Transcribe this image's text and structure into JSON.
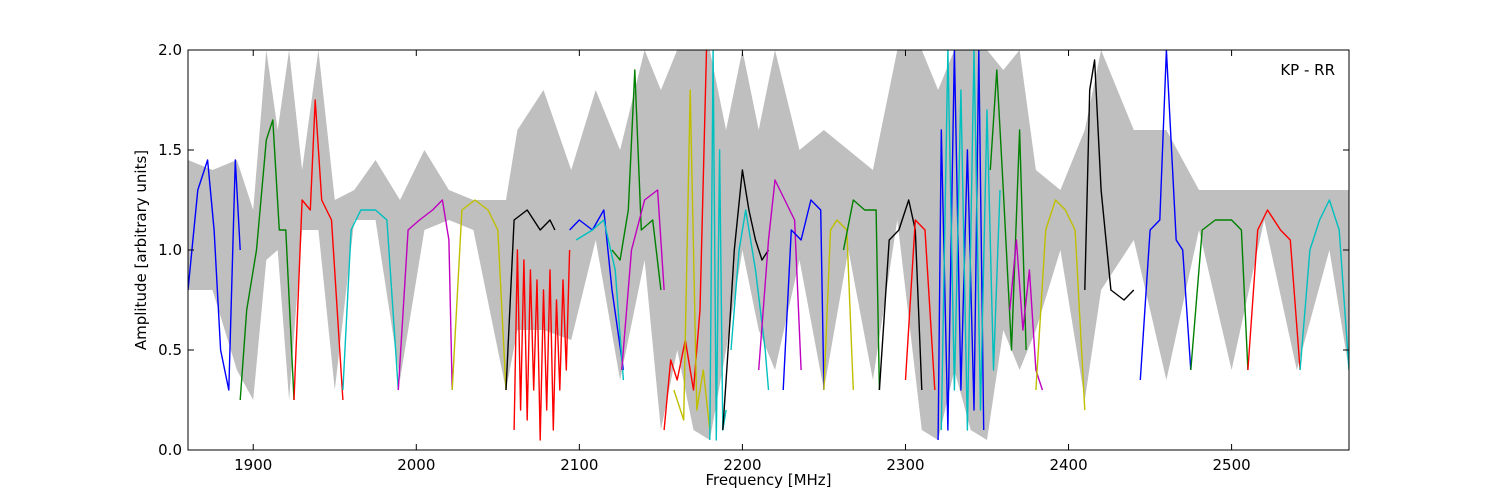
{
  "chart_data": {
    "type": "line",
    "xlabel": "Frequency [MHz]",
    "ylabel": "Amplitude [arbitrary units]",
    "annotation": "KP - RR",
    "xlim": [
      1860,
      2572
    ],
    "ylim": [
      0,
      2.0
    ],
    "xticks": [
      1900,
      2000,
      2100,
      2200,
      2300,
      2400,
      2500
    ],
    "yticks": [
      0.0,
      0.5,
      1.0,
      1.5,
      2.0
    ],
    "xtick_labels": [
      "1900",
      "2000",
      "2100",
      "2200",
      "2300",
      "2400",
      "2500"
    ],
    "ytick_labels": [
      "0.0",
      "0.5",
      "1.0",
      "1.5",
      "2.0"
    ],
    "grid": false,
    "background_envelope": {
      "color": "#bfbfbf",
      "x": [
        1860,
        1875,
        1890,
        1900,
        1908,
        1915,
        1922,
        1930,
        1940,
        1950,
        1962,
        1975,
        1990,
        2005,
        2020,
        2035,
        2055,
        2062,
        2078,
        2095,
        2110,
        2125,
        2140,
        2150,
        2160,
        2170,
        2180,
        2190,
        2200,
        2210,
        2220,
        2235,
        2250,
        2265,
        2280,
        2295,
        2310,
        2320,
        2330,
        2340,
        2350,
        2360,
        2370,
        2380,
        2395,
        2410,
        2420,
        2440,
        2460,
        2480,
        2500,
        2520,
        2540,
        2560,
        2572
      ],
      "top": [
        1.45,
        1.4,
        1.45,
        1.2,
        2.0,
        1.6,
        2.0,
        1.4,
        2.0,
        1.25,
        1.3,
        1.45,
        1.25,
        1.5,
        1.3,
        1.25,
        1.25,
        1.6,
        1.8,
        1.4,
        1.8,
        1.5,
        2.0,
        1.8,
        2.0,
        2.0,
        2.0,
        1.6,
        2.0,
        1.6,
        2.0,
        1.5,
        1.6,
        1.5,
        1.4,
        2.0,
        2.0,
        1.8,
        2.0,
        2.0,
        2.0,
        1.9,
        2.0,
        1.4,
        1.3,
        1.6,
        2.0,
        1.6,
        1.6,
        1.3,
        1.3,
        1.3,
        1.3,
        1.3,
        1.3
      ],
      "bottom": [
        0.8,
        0.8,
        0.4,
        0.25,
        0.95,
        1.0,
        0.25,
        1.1,
        1.1,
        0.3,
        1.15,
        1.15,
        0.35,
        1.1,
        1.15,
        1.1,
        0.3,
        0.6,
        0.6,
        0.55,
        1.05,
        0.35,
        0.95,
        0.1,
        0.5,
        0.1,
        0.05,
        0.5,
        1.0,
        0.6,
        0.4,
        0.95,
        0.3,
        1.0,
        0.35,
        1.15,
        0.1,
        0.05,
        0.4,
        0.1,
        0.05,
        0.6,
        0.4,
        0.6,
        1.0,
        0.25,
        0.8,
        1.05,
        0.35,
        1.1,
        0.4,
        1.15,
        0.4,
        1.0,
        0.4
      ]
    },
    "series": [
      {
        "color": "#0000ff",
        "x": [
          1860,
          1866,
          1872,
          1876,
          1880,
          1885,
          1889,
          1892
        ],
        "y": [
          0.8,
          1.3,
          1.45,
          1.1,
          0.5,
          0.3,
          1.45,
          1.0
        ]
      },
      {
        "color": "#008000",
        "x": [
          1892,
          1896,
          1902,
          1908,
          1912,
          1916,
          1920,
          1925
        ],
        "y": [
          0.25,
          0.7,
          1.0,
          1.55,
          1.65,
          1.1,
          1.1,
          0.25
        ]
      },
      {
        "color": "#ff0000",
        "x": [
          1925,
          1930,
          1935,
          1938,
          1942,
          1948,
          1955
        ],
        "y": [
          0.25,
          1.25,
          1.2,
          1.75,
          1.25,
          1.15,
          0.25
        ]
      },
      {
        "color": "#00bfbf",
        "x": [
          1955,
          1960,
          1966,
          1975,
          1982,
          1989
        ],
        "y": [
          0.3,
          1.1,
          1.2,
          1.2,
          1.15,
          0.3
        ]
      },
      {
        "color": "#bf00bf",
        "x": [
          1989,
          1995,
          2002,
          2010,
          2016,
          2020,
          2022
        ],
        "y": [
          0.3,
          1.1,
          1.15,
          1.2,
          1.25,
          1.05,
          0.3
        ]
      },
      {
        "color": "#bfbf00",
        "x": [
          2022,
          2028,
          2036,
          2044,
          2050,
          2055
        ],
        "y": [
          0.3,
          1.2,
          1.25,
          1.2,
          1.1,
          0.3
        ]
      },
      {
        "color": "#000000",
        "x": [
          2055,
          2060,
          2068,
          2076,
          2082,
          2085
        ],
        "y": [
          0.3,
          1.15,
          1.2,
          1.1,
          1.15,
          1.1
        ]
      },
      {
        "color": "#ff0000",
        "x": [
          2060,
          2062,
          2064,
          2066,
          2068,
          2070,
          2072,
          2074,
          2076,
          2078,
          2080,
          2082,
          2084,
          2086,
          2088,
          2090,
          2092,
          2094
        ],
        "y": [
          0.1,
          1.0,
          0.2,
          0.95,
          0.15,
          0.9,
          0.3,
          0.85,
          0.05,
          0.8,
          0.2,
          0.9,
          0.1,
          0.75,
          0.3,
          0.85,
          0.4,
          1.0
        ]
      },
      {
        "color": "#0000ff",
        "x": [
          2094,
          2100,
          2108,
          2115,
          2120,
          2127
        ],
        "y": [
          1.1,
          1.15,
          1.1,
          1.2,
          0.8,
          0.4
        ]
      },
      {
        "color": "#00bfbf",
        "x": [
          2098,
          2108,
          2115,
          2122,
          2127
        ],
        "y": [
          1.05,
          1.1,
          1.15,
          0.9,
          0.35
        ]
      },
      {
        "color": "#008000",
        "x": [
          2120,
          2125,
          2130,
          2134,
          2138,
          2145,
          2150
        ],
        "y": [
          1.0,
          0.95,
          1.2,
          1.9,
          1.1,
          1.15,
          0.8
        ]
      },
      {
        "color": "#bf00bf",
        "x": [
          2126,
          2132,
          2140,
          2148,
          2152
        ],
        "y": [
          0.4,
          1.0,
          1.25,
          1.3,
          0.8
        ]
      },
      {
        "color": "#ff0000",
        "x": [
          2152,
          2156,
          2160,
          2165,
          2170,
          2174,
          2178
        ],
        "y": [
          0.1,
          0.45,
          0.35,
          0.55,
          0.3,
          0.7,
          2.0
        ]
      },
      {
        "color": "#bfbf00",
        "x": [
          2158,
          2164,
          2168,
          2172,
          2176,
          2180
        ],
        "y": [
          0.3,
          0.15,
          1.8,
          0.2,
          0.4,
          0.1
        ]
      },
      {
        "color": "#00bfbf",
        "x": [
          2180,
          2182,
          2184,
          2186,
          2188,
          2190
        ],
        "y": [
          0.05,
          2.0,
          0.05,
          1.5,
          0.1,
          0.2
        ]
      },
      {
        "color": "#000000",
        "x": [
          2188,
          2192,
          2195,
          2200,
          2204,
          2208,
          2212,
          2216
        ],
        "y": [
          0.1,
          0.6,
          1.0,
          1.4,
          1.2,
          1.05,
          0.95,
          1.0
        ]
      },
      {
        "color": "#00bfbf",
        "x": [
          2193,
          2198,
          2202,
          2208,
          2214,
          2216
        ],
        "y": [
          0.5,
          1.0,
          1.2,
          0.9,
          0.5,
          0.3
        ]
      },
      {
        "color": "#bf00bf",
        "x": [
          2210,
          2216,
          2220,
          2226,
          2232,
          2236
        ],
        "y": [
          0.4,
          1.05,
          1.35,
          1.25,
          1.15,
          0.4
        ]
      },
      {
        "color": "#0000ff",
        "x": [
          2225,
          2230,
          2236,
          2242,
          2248,
          2250
        ],
        "y": [
          0.3,
          1.1,
          1.05,
          1.25,
          1.2,
          0.3
        ]
      },
      {
        "color": "#bfbf00",
        "x": [
          2250,
          2254,
          2258,
          2264,
          2268
        ],
        "y": [
          0.3,
          1.1,
          1.15,
          1.1,
          0.3
        ]
      },
      {
        "color": "#008000",
        "x": [
          2262,
          2268,
          2275,
          2282,
          2284
        ],
        "y": [
          1.0,
          1.25,
          1.2,
          1.2,
          0.3
        ]
      },
      {
        "color": "#000000",
        "x": [
          2284,
          2290,
          2296,
          2302,
          2306,
          2310
        ],
        "y": [
          0.3,
          1.05,
          1.1,
          1.25,
          1.1,
          0.3
        ]
      },
      {
        "color": "#ff0000",
        "x": [
          2300,
          2306,
          2312,
          2318
        ],
        "y": [
          0.35,
          1.15,
          1.1,
          0.3
        ]
      },
      {
        "color": "#0000ff",
        "x": [
          2320,
          2322,
          2326,
          2330,
          2334,
          2338,
          2342,
          2345,
          2348
        ],
        "y": [
          0.05,
          1.6,
          0.1,
          2.0,
          0.3,
          1.5,
          0.2,
          2.0,
          0.1
        ]
      },
      {
        "color": "#00bfbf",
        "x": [
          2322,
          2326,
          2330,
          2334,
          2338,
          2342,
          2346,
          2350,
          2354,
          2358
        ],
        "y": [
          0.1,
          2.0,
          0.3,
          1.8,
          0.1,
          2.0,
          0.2,
          1.7,
          0.4,
          1.3
        ]
      },
      {
        "color": "#008000",
        "x": [
          2352,
          2356,
          2360,
          2365,
          2370,
          2374
        ],
        "y": [
          1.4,
          1.9,
          1.3,
          0.5,
          1.6,
          0.5
        ]
      },
      {
        "color": "#bf00bf",
        "x": [
          2364,
          2368,
          2372,
          2376,
          2380,
          2384
        ],
        "y": [
          0.7,
          1.05,
          0.6,
          0.9,
          0.4,
          0.3
        ]
      },
      {
        "color": "#bfbf00",
        "x": [
          2380,
          2386,
          2392,
          2398,
          2404,
          2410
        ],
        "y": [
          0.3,
          1.1,
          1.25,
          1.2,
          1.1,
          0.2
        ]
      },
      {
        "color": "#000000",
        "x": [
          2410,
          2413,
          2416,
          2420,
          2426,
          2434,
          2440
        ],
        "y": [
          0.8,
          1.8,
          1.95,
          1.3,
          0.8,
          0.75,
          0.8
        ]
      },
      {
        "color": "#0000ff",
        "x": [
          2444,
          2450,
          2456,
          2460,
          2466,
          2470,
          2475
        ],
        "y": [
          0.35,
          1.1,
          1.15,
          2.0,
          1.05,
          1.0,
          0.4
        ]
      },
      {
        "color": "#008000",
        "x": [
          2475,
          2482,
          2490,
          2500,
          2506,
          2510
        ],
        "y": [
          0.4,
          1.1,
          1.15,
          1.15,
          1.1,
          0.4
        ]
      },
      {
        "color": "#ff0000",
        "x": [
          2510,
          2516,
          2522,
          2530,
          2536,
          2542
        ],
        "y": [
          0.4,
          1.1,
          1.2,
          1.1,
          1.05,
          0.4
        ]
      },
      {
        "color": "#00bfbf",
        "x": [
          2542,
          2548,
          2554,
          2560,
          2566,
          2572
        ],
        "y": [
          0.4,
          1.0,
          1.15,
          1.25,
          1.1,
          0.4
        ]
      }
    ]
  }
}
